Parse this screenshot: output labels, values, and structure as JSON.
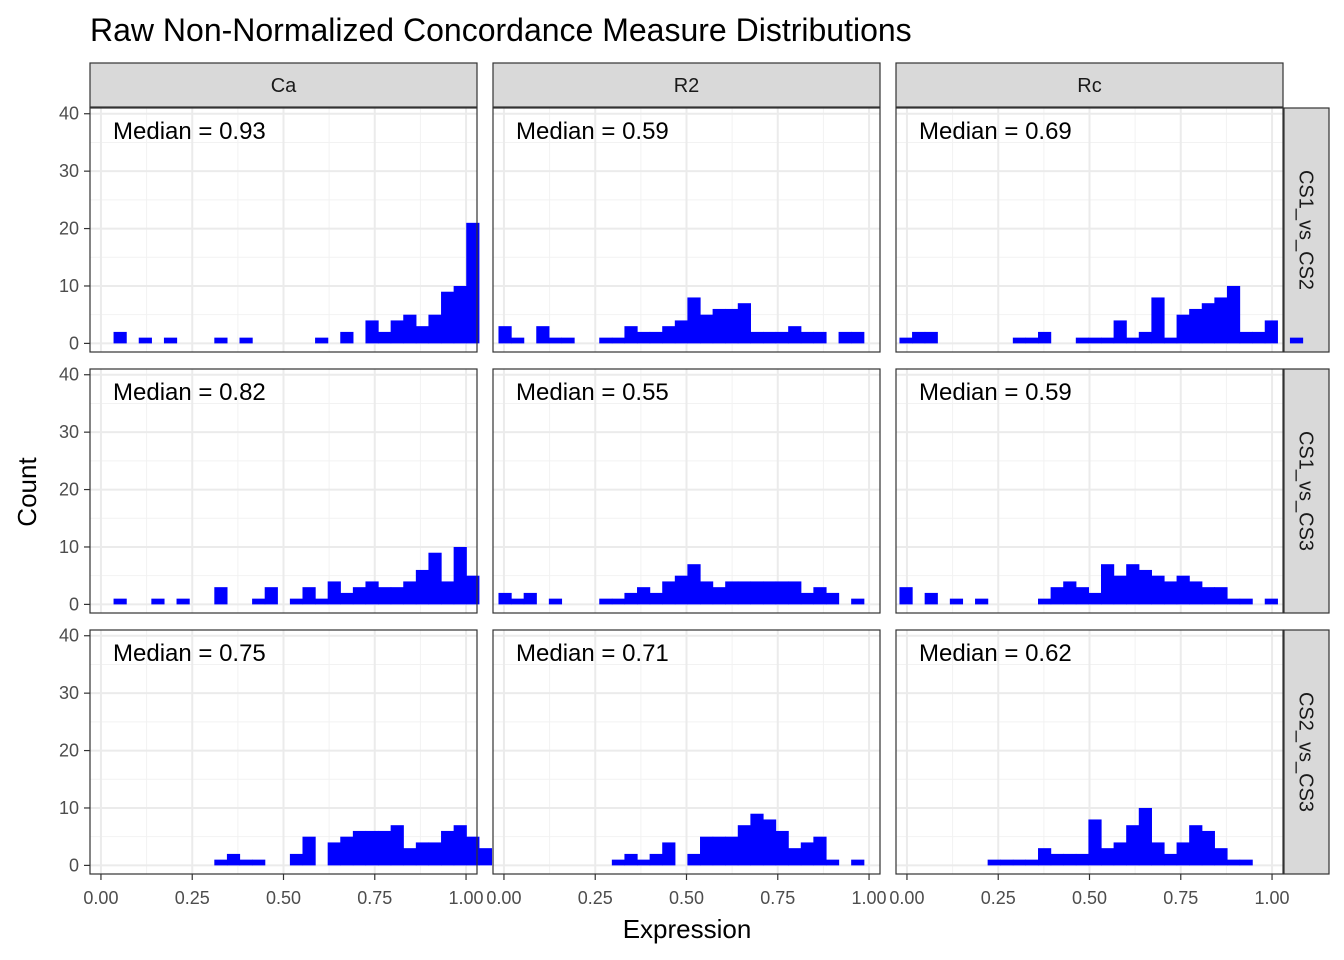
{
  "chart_data": {
    "type": "histogram",
    "title": "Raw Non-Normalized Concordance Measure Distributions",
    "xlabel": "Expression",
    "ylabel": "Count",
    "xlim": [
      -0.03,
      1.03
    ],
    "ylim": [
      -1.5,
      41
    ],
    "x_ticks": [
      0,
      0.25,
      0.5,
      0.75,
      1
    ],
    "x_tick_labels": [
      "0.00",
      "0.25",
      "0.50",
      "0.75",
      "1.00"
    ],
    "y_ticks": [
      0,
      10,
      20,
      30,
      40
    ],
    "y_tick_labels": [
      "0",
      "10",
      "20",
      "30",
      "40"
    ],
    "bin_width": 0.0345,
    "bar_color": "#0000ff",
    "grid": true,
    "columns": [
      "Ca",
      "R2",
      "Rc"
    ],
    "rows": [
      "CS1_vs_CS2",
      "CS1_vs_CS3",
      "CS2_vs_CS3"
    ],
    "panels": [
      {
        "row": "CS1_vs_CS2",
        "col": "Ca",
        "median_label": "Median = 0.93",
        "start": 0.0,
        "counts": [
          0,
          2,
          0,
          1,
          0,
          1,
          0,
          0,
          0,
          1,
          0,
          1,
          0,
          0,
          0,
          0,
          0,
          1,
          0,
          2,
          0,
          4,
          2,
          4,
          5,
          3,
          5,
          9,
          10,
          21
        ]
      },
      {
        "row": "CS1_vs_CS2",
        "col": "R2",
        "median_label": "Median = 0.59",
        "start": -0.015,
        "counts": [
          3,
          1,
          0,
          3,
          1,
          1,
          0,
          0,
          1,
          1,
          3,
          2,
          2,
          3,
          4,
          8,
          5,
          6,
          6,
          7,
          2,
          2,
          2,
          3,
          2,
          2,
          0,
          2,
          2
        ]
      },
      {
        "row": "CS1_vs_CS2",
        "col": "Rc",
        "median_label": "Median = 0.69",
        "start": -0.055,
        "counts": [
          0,
          1,
          2,
          2,
          0,
          0,
          0,
          0,
          0,
          0,
          1,
          1,
          2,
          0,
          0,
          1,
          1,
          1,
          4,
          1,
          2,
          8,
          1,
          5,
          6,
          7,
          8,
          10,
          2,
          2,
          4,
          0,
          1
        ]
      },
      {
        "row": "CS1_vs_CS3",
        "col": "Ca",
        "median_label": "Median = 0.82",
        "start": 0.0,
        "counts": [
          0,
          1,
          0,
          0,
          1,
          0,
          1,
          0,
          0,
          3,
          0,
          0,
          1,
          3,
          0,
          1,
          3,
          1,
          4,
          2,
          3,
          4,
          3,
          3,
          4,
          6,
          9,
          4,
          10,
          5
        ]
      },
      {
        "row": "CS1_vs_CS3",
        "col": "R2",
        "median_label": "Median = 0.55",
        "start": -0.015,
        "counts": [
          2,
          1,
          2,
          0,
          1,
          0,
          0,
          0,
          1,
          1,
          2,
          3,
          2,
          4,
          5,
          7,
          4,
          3,
          4,
          4,
          4,
          4,
          4,
          4,
          2,
          3,
          2,
          0,
          1
        ]
      },
      {
        "row": "CS1_vs_CS3",
        "col": "Rc",
        "median_label": "Median = 0.59",
        "start": -0.055,
        "counts": [
          0,
          3,
          0,
          2,
          0,
          1,
          0,
          1,
          0,
          0,
          0,
          0,
          1,
          3,
          4,
          3,
          2,
          7,
          5,
          7,
          6,
          5,
          4,
          5,
          4,
          3,
          3,
          1,
          1,
          0,
          1
        ]
      },
      {
        "row": "CS2_vs_CS3",
        "col": "Ca",
        "median_label": "Median = 0.75",
        "start": 0.0,
        "counts": [
          0,
          0,
          0,
          0,
          0,
          0,
          0,
          0,
          0,
          1,
          2,
          1,
          1,
          0,
          0,
          2,
          5,
          0,
          4,
          5,
          6,
          6,
          6,
          7,
          3,
          4,
          4,
          6,
          7,
          5,
          3
        ]
      },
      {
        "row": "CS2_vs_CS3",
        "col": "R2",
        "median_label": "Median = 0.71",
        "start": -0.015,
        "counts": [
          0,
          0,
          0,
          0,
          0,
          0,
          0,
          0,
          0,
          1,
          2,
          1,
          2,
          4,
          0,
          2,
          5,
          5,
          5,
          7,
          9,
          8,
          6,
          3,
          4,
          5,
          1,
          0,
          1
        ]
      },
      {
        "row": "CS2_vs_CS3",
        "col": "Rc",
        "median_label": "Median = 0.62",
        "start": -0.055,
        "counts": [
          0,
          0,
          0,
          0,
          0,
          0,
          0,
          0,
          1,
          1,
          1,
          1,
          3,
          2,
          2,
          2,
          8,
          3,
          4,
          7,
          10,
          4,
          2,
          4,
          7,
          6,
          3,
          1,
          1
        ]
      }
    ]
  }
}
